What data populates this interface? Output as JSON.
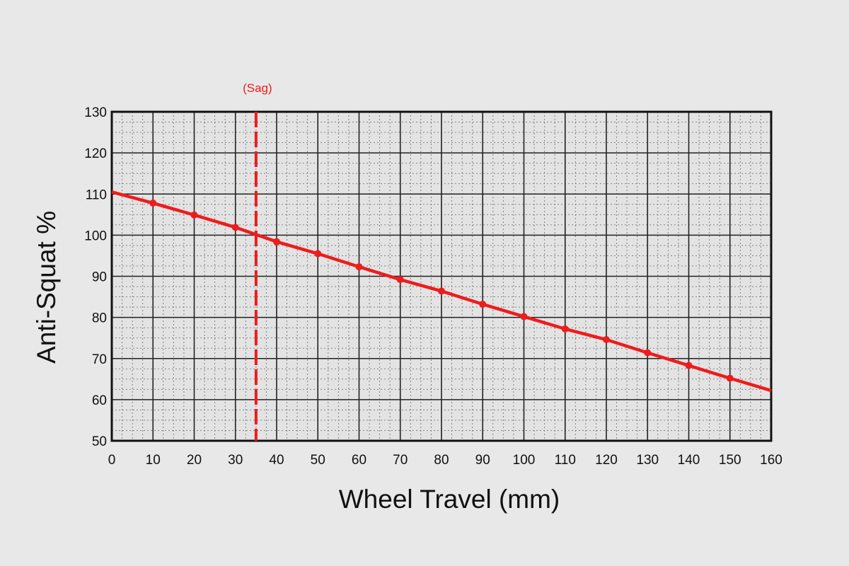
{
  "chart_data": {
    "type": "line",
    "xlabel": "Wheel Travel (mm)",
    "ylabel": "Anti-Squat %",
    "xlim": [
      0,
      160
    ],
    "ylim": [
      50,
      130
    ],
    "x_ticks": [
      0,
      10,
      20,
      30,
      40,
      50,
      60,
      70,
      80,
      90,
      100,
      110,
      120,
      130,
      140,
      150,
      160
    ],
    "y_ticks": [
      50,
      60,
      70,
      80,
      90,
      100,
      110,
      120,
      130
    ],
    "grid": true,
    "line_color": "#ee1c1c",
    "series": [
      {
        "x": [
          0,
          10,
          20,
          30,
          40,
          50,
          60,
          70,
          80,
          90,
          100,
          110,
          120,
          130,
          140,
          150,
          160
        ],
        "y": [
          110.5,
          107.8,
          104.9,
          101.9,
          98.4,
          95.5,
          92.3,
          89.2,
          86.4,
          83.2,
          80.2,
          77.2,
          74.6,
          71.4,
          68.3,
          65.2,
          62.2
        ]
      }
    ],
    "annotations": [
      {
        "type": "vline",
        "x": 35,
        "label": "(Sag)",
        "color": "#ee1c1c"
      }
    ]
  }
}
